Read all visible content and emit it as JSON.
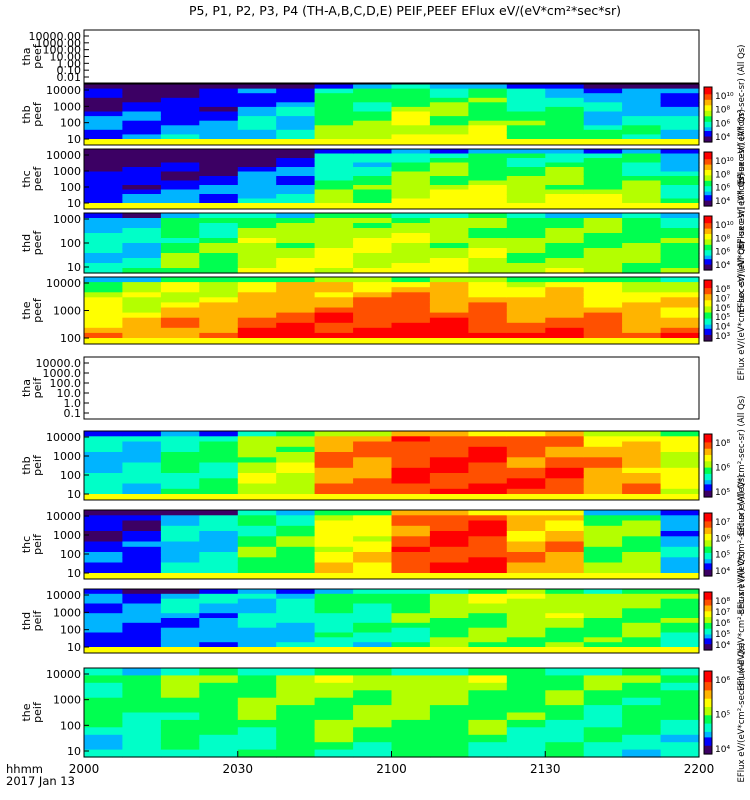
{
  "title": "P5, P1, P2, P3, P4 (TH-A,B,C,D,E) PEIF,PEEF EFlux eV/(eV*cm²*sec*sr)",
  "colors": {
    "ramp": [
      "#3c0064",
      "#0000ff",
      "#00b4ff",
      "#00ffc8",
      "#00ff50",
      "#b4ff00",
      "#ffff00",
      "#ffb400",
      "#ff5000",
      "#ff0000"
    ],
    "frame": "#000000",
    "flag_yellow": "#ffff00",
    "flag_red": "#ff0000"
  },
  "chart_data": {
    "type": "heatmap",
    "x": {
      "ticks": [
        "2000",
        "2030",
        "2100",
        "2130",
        "2200"
      ],
      "label": "hhmm",
      "date": "2017 Jan 13"
    },
    "panels": [
      {
        "probe": "tha",
        "product": "peef",
        "ylabel": [
          "tha",
          "peef"
        ],
        "yticks": [
          "10000.00",
          "1000.00",
          "100.00",
          "10.00",
          "1.00",
          "0.10",
          "0.01"
        ],
        "empty": true,
        "colorbar": null,
        "ztitle": ""
      },
      {
        "probe": "thb",
        "product": "peef",
        "ylabel": [
          "thb",
          "peef"
        ],
        "yticks": [
          "10000",
          "1000",
          "100",
          "10"
        ],
        "colorbar": [
          "10¹⁰",
          "10⁸",
          "10⁶",
          "10⁴"
        ],
        "ztitle": "EFlux eV/(eV*cm²-sec-sr) (All Qs)",
        "profile": [
          0.15,
          0.15,
          0.25,
          0.45,
          0.55,
          0.5,
          0.4,
          0.3,
          0.25
        ],
        "grad": 0.2,
        "flag_bottom": true
      },
      {
        "probe": "thc",
        "product": "peef",
        "ylabel": [
          "thc",
          "peef"
        ],
        "yticks": [
          "10000",
          "1000",
          "100",
          "10"
        ],
        "colorbar": [
          "10¹⁰",
          "10⁸",
          "10⁶",
          "10⁴"
        ],
        "ztitle": "EFlux eV/(eV*cm²-sec-sr) (All Qs)",
        "profile": [
          0.1,
          0.12,
          0.2,
          0.4,
          0.5,
          0.52,
          0.5,
          0.45,
          0.35
        ],
        "grad": 0.25,
        "flag_bottom": true
      },
      {
        "probe": "thd",
        "product": "peef",
        "ylabel": [
          "thd",
          "peef"
        ],
        "yticks": [
          "1000",
          "100",
          "10"
        ],
        "colorbar": [
          "10¹⁰",
          "10⁸",
          "10⁶",
          "10⁴"
        ],
        "ztitle": "EFlux eV/(eV*cm²-sec-sr) (All Qs)",
        "profile": [
          0.3,
          0.45,
          0.55,
          0.58,
          0.58,
          0.55,
          0.5,
          0.5,
          0.45
        ],
        "grad": 0.1,
        "flag_bottom": false
      },
      {
        "probe": "the",
        "product": "peef",
        "ylabel": [
          "the",
          "peef"
        ],
        "yticks": [
          "10000",
          "1000",
          "100"
        ],
        "colorbar": [
          "10⁸",
          "10⁷",
          "10⁶",
          "10⁵",
          "10⁴",
          "10³"
        ],
        "ztitle": "EFlux eV/(eV*cm²-sec-sr) (All Qs)",
        "profile": [
          0.62,
          0.7,
          0.78,
          0.82,
          0.84,
          0.8,
          0.75,
          0.72,
          0.7
        ],
        "grad": 0.3,
        "flag_bottom": true
      },
      {
        "probe": "tha",
        "product": "peif",
        "ylabel": [
          "tha",
          "peif"
        ],
        "yticks": [
          "10000.0",
          "1000.0",
          "100.0",
          "10.0",
          "1.0",
          "0.1"
        ],
        "empty": true,
        "colorbar": null,
        "ztitle": ""
      },
      {
        "probe": "thb",
        "product": "peif",
        "ylabel": [
          "thb",
          "peif"
        ],
        "yticks": [
          "10000",
          "1000",
          "100",
          "10"
        ],
        "colorbar": [
          "10⁸",
          "10⁶",
          "10⁵"
        ],
        "ztitle": "EFlux eV/(eV*cm²-sec-sr) (All Qs)",
        "profile": [
          0.3,
          0.4,
          0.55,
          0.78,
          0.88,
          0.9,
          0.85,
          0.75,
          0.6
        ],
        "grad": 0.05,
        "flag_bottom": true
      },
      {
        "probe": "thc",
        "product": "peif",
        "ylabel": [
          "thc",
          "peif"
        ],
        "yticks": [
          "10000",
          "1000",
          "100",
          "10"
        ],
        "colorbar": [
          "10⁷",
          "10⁶",
          "10⁵",
          "10⁴"
        ],
        "ztitle": "EFlux eV/(eV*cm²-sec-sr) (All Qs)",
        "profile": [
          0.15,
          0.3,
          0.45,
          0.65,
          0.85,
          0.9,
          0.75,
          0.5,
          0.25
        ],
        "grad": 0.05,
        "flag_bottom": true
      },
      {
        "probe": "thd",
        "product": "peif",
        "ylabel": [
          "thd",
          "peif"
        ],
        "yticks": [
          "10000",
          "1000",
          "100",
          "10"
        ],
        "colorbar": [
          "10⁸",
          "10⁷",
          "10⁶",
          "10⁵",
          "10⁴"
        ],
        "ztitle": "EFlux eV/(eV*cm²-sec-sr) (All Qs)",
        "profile": [
          0.2,
          0.25,
          0.3,
          0.38,
          0.45,
          0.52,
          0.55,
          0.5,
          0.45
        ],
        "grad": -0.1,
        "flag_bottom": true
      },
      {
        "probe": "the",
        "product": "peif",
        "ylabel": [
          "the",
          "peif"
        ],
        "yticks": [
          "10000",
          "1000",
          "100",
          "10"
        ],
        "colorbar": [
          "10⁶",
          "10⁵",
          "10⁴"
        ],
        "ztitle": "EFlux eV/(eV*cm²-sec-sr) (All Qs)",
        "profile": [
          0.4,
          0.45,
          0.48,
          0.5,
          0.5,
          0.48,
          0.45,
          0.42,
          0.4
        ],
        "grad": -0.15,
        "flag_bottom": false
      }
    ]
  }
}
